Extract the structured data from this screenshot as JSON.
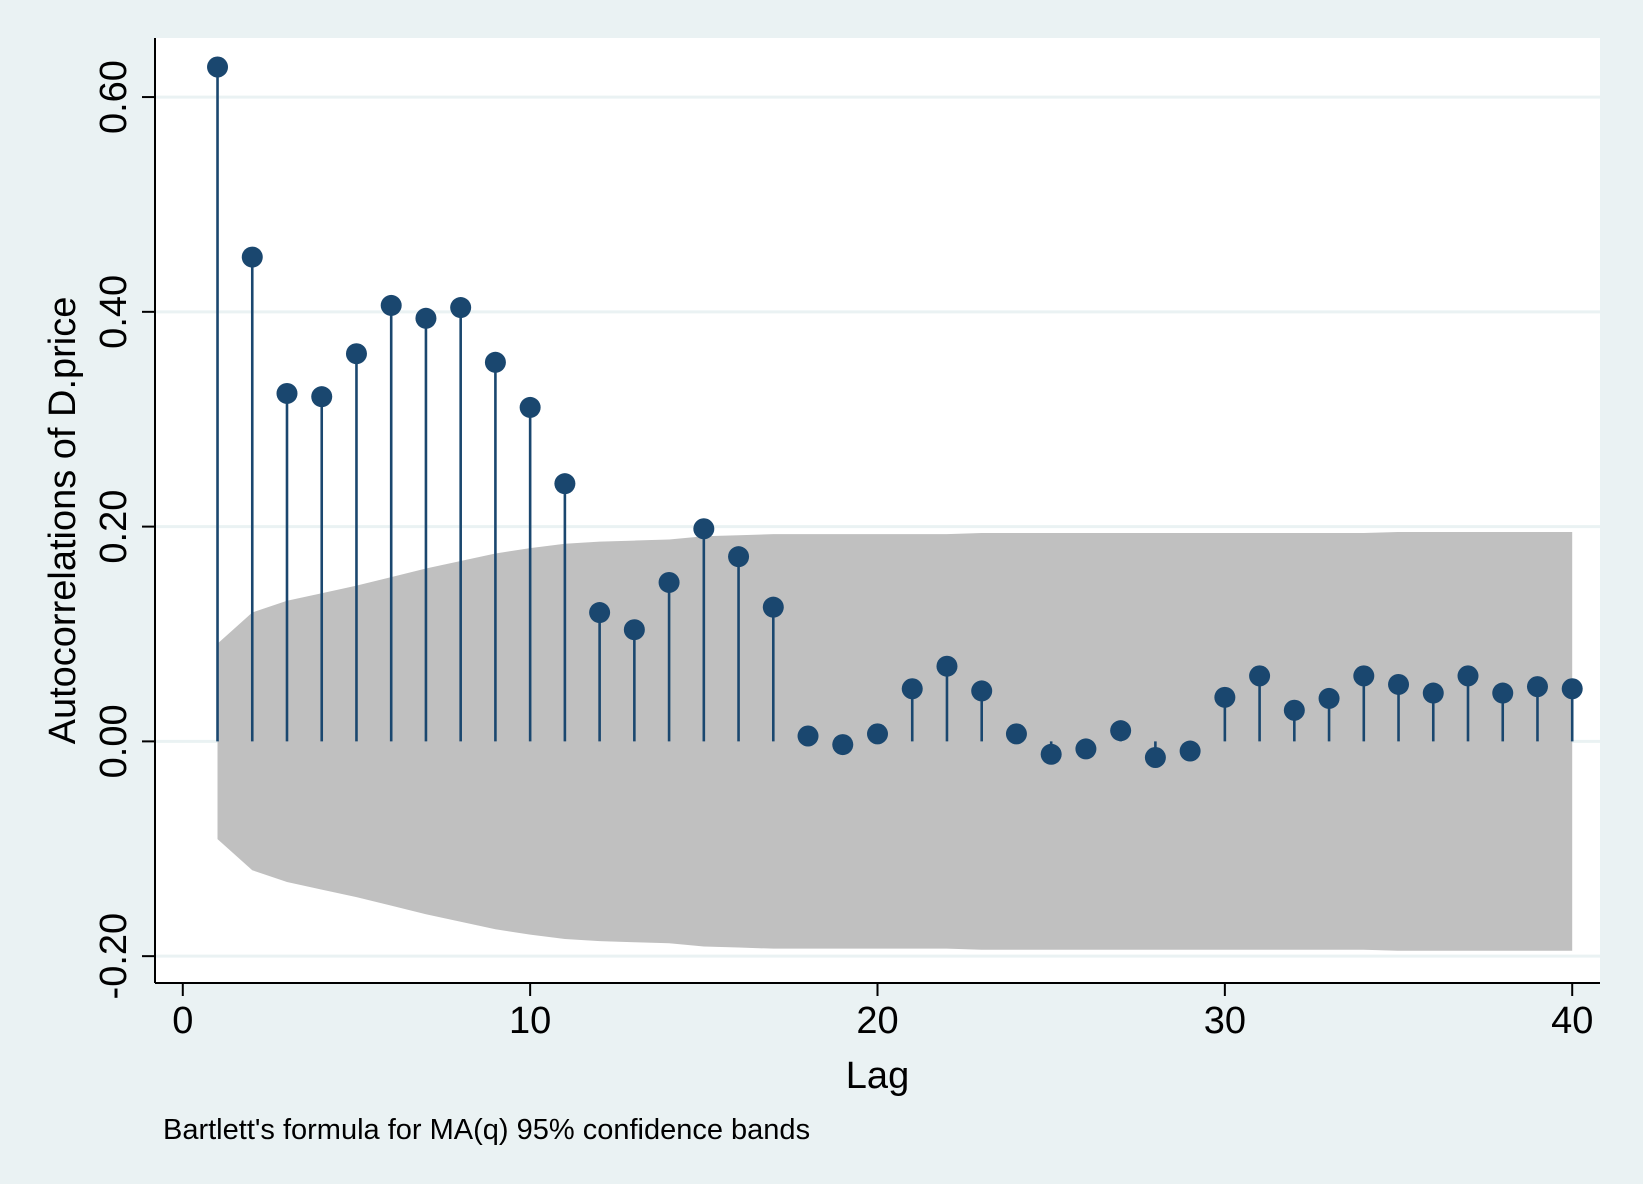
{
  "chart_data": {
    "type": "stem",
    "title": "",
    "xlabel": "Lag",
    "ylabel": "Autocorrelations of D.price",
    "note": "Bartlett's formula for MA(q) 95% confidence bands",
    "xlim": [
      -0.8,
      40.8
    ],
    "ylim": [
      -0.225,
      0.655
    ],
    "x_ticks": [
      0,
      10,
      20,
      30,
      40
    ],
    "x_tick_labels": [
      "0",
      "10",
      "20",
      "30",
      "40"
    ],
    "y_ticks": [
      -0.2,
      0,
      0.2,
      0.4,
      0.6
    ],
    "y_tick_labels": [
      "-0.20",
      "0.00",
      "0.20",
      "0.40",
      "0.60"
    ],
    "grid": true,
    "series": [
      {
        "type": "stem",
        "x": [
          1,
          2,
          3,
          4,
          5,
          6,
          7,
          8,
          9,
          10,
          11,
          12,
          13,
          14,
          15,
          16,
          17,
          18,
          19,
          20,
          21,
          22,
          23,
          24,
          25,
          26,
          27,
          28,
          29,
          30,
          31,
          32,
          33,
          34,
          35,
          36,
          37,
          38,
          39,
          40
        ],
        "values": [
          0.628,
          0.451,
          0.324,
          0.321,
          0.361,
          0.406,
          0.394,
          0.404,
          0.353,
          0.311,
          0.24,
          0.12,
          0.104,
          0.148,
          0.198,
          0.172,
          0.125,
          0.005,
          -0.003,
          0.007,
          0.049,
          0.07,
          0.047,
          0.007,
          -0.012,
          -0.007,
          0.01,
          -0.015,
          -0.009,
          0.041,
          0.061,
          0.029,
          0.04,
          0.061,
          0.053,
          0.045,
          0.061,
          0.045,
          0.051,
          0.049
        ]
      }
    ],
    "confidence_band": {
      "x": [
        1,
        2,
        3,
        4,
        5,
        6,
        7,
        8,
        9,
        10,
        11,
        12,
        13,
        14,
        15,
        16,
        17,
        18,
        19,
        20,
        21,
        22,
        23,
        24,
        25,
        26,
        27,
        28,
        29,
        30,
        31,
        32,
        33,
        34,
        35,
        36,
        37,
        38,
        39,
        40
      ],
      "upper": [
        0.091,
        0.12,
        0.131,
        0.138,
        0.145,
        0.153,
        0.161,
        0.168,
        0.175,
        0.18,
        0.184,
        0.186,
        0.187,
        0.188,
        0.191,
        0.192,
        0.193,
        0.193,
        0.193,
        0.193,
        0.193,
        0.193,
        0.194,
        0.194,
        0.194,
        0.194,
        0.194,
        0.194,
        0.194,
        0.194,
        0.194,
        0.194,
        0.194,
        0.194,
        0.195,
        0.195,
        0.195,
        0.195,
        0.195,
        0.195
      ]
    },
    "colors": {
      "background": "#eaf2f3",
      "plot_area": "#ffffff",
      "band": "#c0c0c0",
      "stem": "#1a476f",
      "grid": "#eaf2f3"
    }
  }
}
